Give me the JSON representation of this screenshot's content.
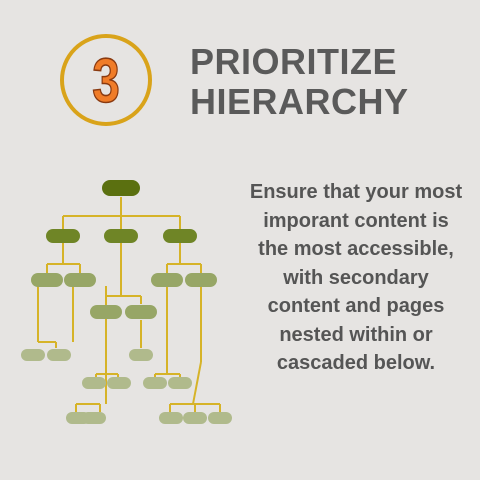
{
  "badge": {
    "number": "3",
    "ring_color": "#d9a31a",
    "number_color": "#f07c28"
  },
  "title": {
    "line1": "PRIORITIZE",
    "line2": "HIERARCHY"
  },
  "description": "Ensure that your most imporant content is the most accessible, with secondary content and pages nested within or cascaded below.",
  "tree": {
    "node_colors": {
      "root": "#5b7010",
      "level1": "#6f8526",
      "level2": "#97a666",
      "leaf": "#b0ba8c"
    },
    "line_color": "#d6b328"
  }
}
